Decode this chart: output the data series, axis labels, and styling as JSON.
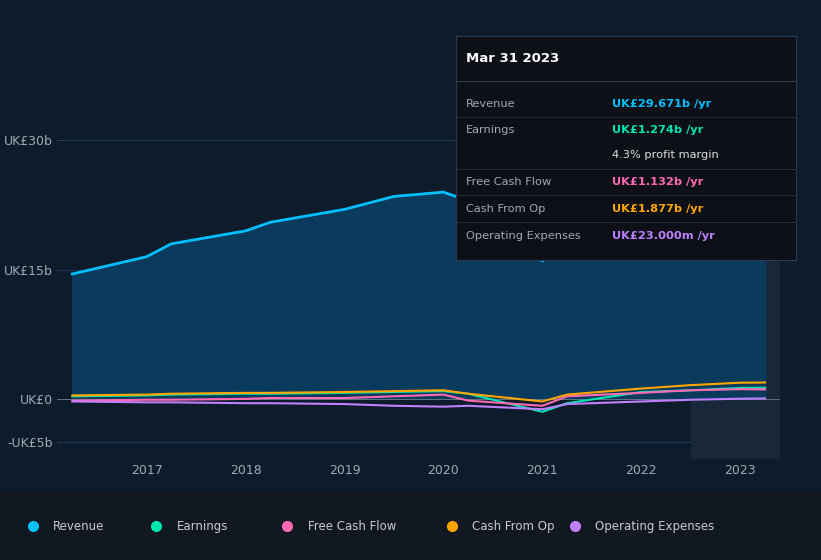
{
  "background_color": "#0d1b2a",
  "plot_bg_color": "#0d1b2a",
  "grid_color": "#1e3a5f",
  "text_color": "#a0aab4",
  "title_color": "#ffffff",
  "x_years": [
    2016.25,
    2017,
    2017.25,
    2018,
    2018.25,
    2019,
    2019.5,
    2020,
    2020.25,
    2021,
    2021.25,
    2022,
    2022.5,
    2023,
    2023.25
  ],
  "revenue": [
    14.5,
    16.5,
    18.0,
    19.5,
    20.5,
    22.0,
    23.5,
    24.0,
    23.0,
    16.0,
    20.0,
    25.0,
    28.0,
    29.67,
    30.0
  ],
  "earnings": [
    0.3,
    0.4,
    0.5,
    0.6,
    0.6,
    0.7,
    0.8,
    0.9,
    0.6,
    -1.5,
    -0.5,
    0.8,
    1.0,
    1.274,
    1.3
  ],
  "free_cash_flow": [
    -0.2,
    -0.1,
    -0.1,
    0.0,
    0.1,
    0.1,
    0.3,
    0.5,
    -0.2,
    -0.8,
    0.3,
    0.7,
    1.0,
    1.132,
    1.1
  ],
  "cash_from_op": [
    0.4,
    0.5,
    0.6,
    0.7,
    0.7,
    0.8,
    0.9,
    1.0,
    0.6,
    -0.3,
    0.5,
    1.2,
    1.6,
    1.877,
    1.9
  ],
  "operating_expenses": [
    -0.3,
    -0.4,
    -0.4,
    -0.5,
    -0.5,
    -0.6,
    -0.8,
    -0.9,
    -0.8,
    -1.2,
    -0.6,
    -0.3,
    -0.1,
    0.023,
    0.05
  ],
  "revenue_color": "#00bfff",
  "earnings_color": "#00e5b0",
  "free_cash_flow_color": "#ff69b4",
  "cash_from_op_color": "#ffa500",
  "operating_expenses_color": "#bf7fff",
  "revenue_fill_color": "#0a3a5c",
  "x_ticks": [
    2017,
    2018,
    2019,
    2020,
    2021,
    2022,
    2023
  ],
  "x_tick_labels": [
    "2017",
    "2018",
    "2019",
    "2020",
    "2021",
    "2022",
    "2023"
  ],
  "y_ticks": [
    -5,
    0,
    15,
    30
  ],
  "y_tick_labels": [
    "-UK£5b",
    "UK£0",
    "UK£15b",
    "UK£30b"
  ],
  "ylim": [
    -7,
    32
  ],
  "xlim": [
    2016.1,
    2023.4
  ],
  "tooltip_title": "Mar 31 2023",
  "tooltip_rows": [
    {
      "label": "Revenue",
      "value": "UK£29.671b /yr",
      "color": "#00bfff"
    },
    {
      "label": "Earnings",
      "value": "UK£1.274b /yr",
      "color": "#00e5b0"
    },
    {
      "label": "",
      "value": "4.3% profit margin",
      "color": "#dddddd"
    },
    {
      "label": "Free Cash Flow",
      "value": "UK£1.132b /yr",
      "color": "#ff69b4"
    },
    {
      "label": "Cash From Op",
      "value": "UK£1.877b /yr",
      "color": "#ffa500"
    },
    {
      "label": "Operating Expenses",
      "value": "UK£23.000m /yr",
      "color": "#bf7fff"
    }
  ],
  "legend_items": [
    {
      "label": "Revenue",
      "color": "#00bfff"
    },
    {
      "label": "Earnings",
      "color": "#00e5b0"
    },
    {
      "label": "Free Cash Flow",
      "color": "#ff69b4"
    },
    {
      "label": "Cash From Op",
      "color": "#ffa500"
    },
    {
      "label": "Operating Expenses",
      "color": "#bf7fff"
    }
  ],
  "highlight_x_start": 2022.5,
  "highlight_x_end": 2023.4,
  "highlight_color": "#1a2a3a"
}
